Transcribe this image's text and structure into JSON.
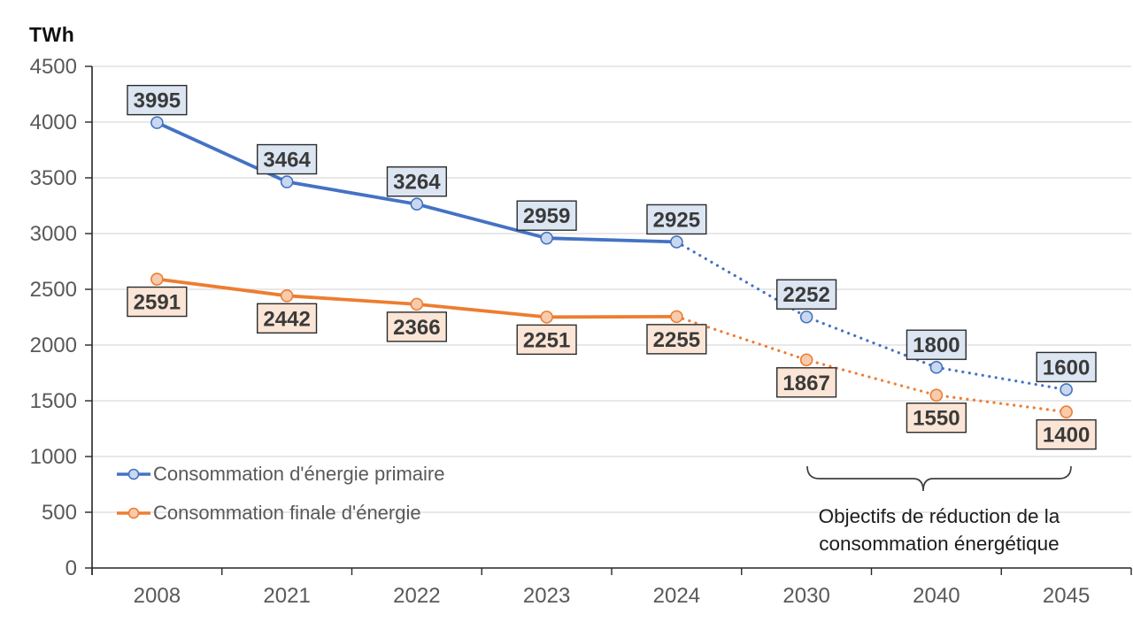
{
  "chart_data": {
    "type": "line",
    "ylabel": "TWh",
    "categories": [
      "2008",
      "2021",
      "2022",
      "2023",
      "2024",
      "2030",
      "2040",
      "2045"
    ],
    "yticks": [
      0,
      500,
      1000,
      1500,
      2000,
      2500,
      3000,
      3500,
      4000,
      4500
    ],
    "ylim": [
      0,
      4500
    ],
    "grid": true,
    "solid_until_index": 4,
    "series": [
      {
        "name": "Consommation d'énergie primaire",
        "color": "#4472C4",
        "marker_fill": "#C9D8EE",
        "label_fill": "#DCE6F2",
        "label_border": "#2b2b2b",
        "label_position": "above",
        "line_style_after_2024": "dotted",
        "values": [
          3995,
          3464,
          3264,
          2959,
          2925,
          2252,
          1800,
          1600
        ]
      },
      {
        "name": "Consommation finale d'énergie",
        "color": "#ED7D31",
        "marker_fill": "#F8CBAD",
        "label_fill": "#FBE5D6",
        "label_border": "#2b2b2b",
        "label_position": "below",
        "line_style_after_2024": "dotted",
        "values": [
          2591,
          2442,
          2366,
          2251,
          2255,
          1867,
          1550,
          1400
        ]
      }
    ],
    "annotation": {
      "line1": "Objectifs de réduction de la",
      "line2": "consommation énergétique",
      "span_categories": [
        "2030",
        "2045"
      ]
    },
    "legend_position": "inside-bottom-left",
    "colors": {
      "grid": "#D9D9D9",
      "axis": "#262626",
      "tick_label": "#595959",
      "data_label_text": "#3A3A3A",
      "annotation_text": "#1C1C1C"
    }
  }
}
